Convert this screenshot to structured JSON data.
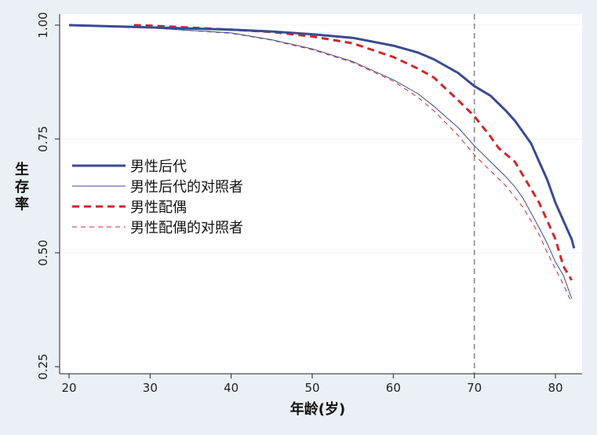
{
  "chart_data": {
    "type": "line",
    "title": "",
    "xlabel": "年龄(岁)",
    "ylabel": "生存率",
    "xlim": [
      19,
      84
    ],
    "ylim": [
      0.22,
      1.02
    ],
    "xticks": [
      20,
      30,
      40,
      50,
      60,
      70,
      80
    ],
    "yticks": [
      0.25,
      0.5,
      0.75,
      1.0
    ],
    "ytick_labels": [
      "0.25",
      "0.50",
      "0.75",
      "1.00"
    ],
    "grid": "horizontal",
    "legend_position": "left-inside",
    "reference_line_x": 70,
    "series": [
      {
        "name": "男性后代",
        "color": "#3a4a94",
        "style": "solid-thick",
        "x": [
          20,
          30,
          40,
          45,
          50,
          55,
          60,
          63,
          65,
          68,
          70,
          72,
          74,
          75,
          76,
          77,
          78,
          79,
          80,
          81,
          82,
          82.3
        ],
        "y": [
          1.0,
          0.995,
          0.99,
          0.986,
          0.98,
          0.972,
          0.955,
          0.94,
          0.925,
          0.895,
          0.866,
          0.845,
          0.81,
          0.79,
          0.765,
          0.74,
          0.7,
          0.66,
          0.61,
          0.57,
          0.53,
          0.51
        ]
      },
      {
        "name": "男性后代的对照者",
        "color": "#3a4a94",
        "style": "solid-thin",
        "x": [
          20,
          30,
          40,
          45,
          50,
          55,
          60,
          63,
          65,
          68,
          70,
          72,
          74,
          75,
          76,
          78,
          79,
          80,
          81,
          82
        ],
        "y": [
          1.0,
          0.994,
          0.983,
          0.968,
          0.948,
          0.92,
          0.88,
          0.85,
          0.822,
          0.775,
          0.735,
          0.7,
          0.665,
          0.645,
          0.62,
          0.555,
          0.52,
          0.48,
          0.45,
          0.4
        ]
      },
      {
        "name": "男性配偶",
        "color": "#d0282a",
        "style": "dashed-thick",
        "x": [
          28,
          30,
          40,
          45,
          50,
          55,
          60,
          63,
          65,
          68,
          70,
          72,
          73,
          75,
          77,
          78,
          79,
          80,
          81,
          82
        ],
        "y": [
          1.0,
          0.999,
          0.99,
          0.985,
          0.975,
          0.96,
          0.93,
          0.905,
          0.885,
          0.835,
          0.8,
          0.755,
          0.73,
          0.7,
          0.64,
          0.61,
          0.57,
          0.53,
          0.47,
          0.44
        ]
      },
      {
        "name": "男性配偶的对照者",
        "color": "#d0282a",
        "style": "dashed-thin",
        "x": [
          20,
          30,
          40,
          45,
          50,
          55,
          60,
          63,
          65,
          68,
          70,
          72,
          74,
          75,
          76,
          78,
          79,
          80,
          81,
          82
        ],
        "y": [
          1.0,
          0.994,
          0.982,
          0.967,
          0.946,
          0.918,
          0.877,
          0.842,
          0.812,
          0.758,
          0.715,
          0.68,
          0.645,
          0.622,
          0.6,
          0.54,
          0.5,
          0.465,
          0.43,
          0.39
        ]
      }
    ]
  }
}
